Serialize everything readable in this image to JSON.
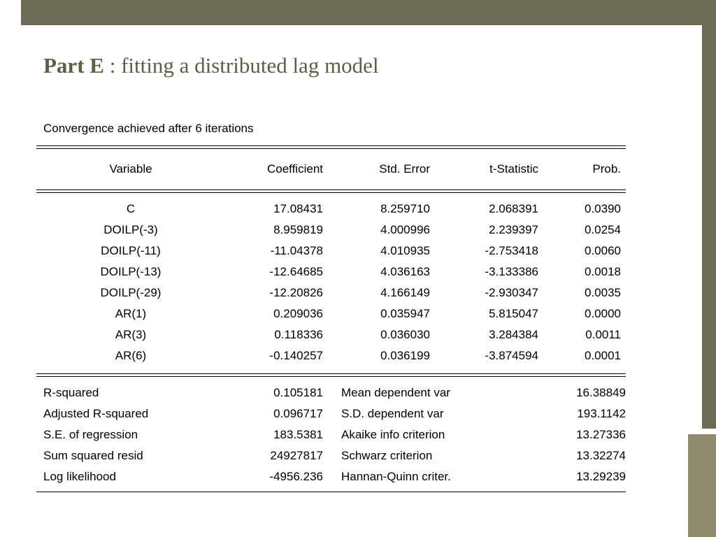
{
  "slide": {
    "title_bold": "Part E",
    "title_rest": " : fitting a distributed lag model"
  },
  "colors": {
    "template_dark_olive": "#6d6b54",
    "template_light_olive": "#8e8b6d",
    "title_text": "#5f5d45",
    "table_text": "#000000",
    "background": "#ffffff"
  },
  "output": {
    "status_line": "Convergence achieved after 6 iterations",
    "columns": [
      "Variable",
      "Coefficient",
      "Std. Error",
      "t-Statistic",
      "Prob."
    ],
    "rows": [
      [
        "C",
        "17.08431",
        "8.259710",
        "2.068391",
        "0.0390"
      ],
      [
        "DOILP(-3)",
        "8.959819",
        "4.000996",
        "2.239397",
        "0.0254"
      ],
      [
        "DOILP(-11)",
        "-11.04378",
        "4.010935",
        "-2.753418",
        "0.0060"
      ],
      [
        "DOILP(-13)",
        "-12.64685",
        "4.036163",
        "-3.133386",
        "0.0018"
      ],
      [
        "DOILP(-29)",
        "-12.20826",
        "4.166149",
        "-2.930347",
        "0.0035"
      ],
      [
        "AR(1)",
        "0.209036",
        "0.035947",
        "5.815047",
        "0.0000"
      ],
      [
        "AR(3)",
        "0.118336",
        "0.036030",
        "3.284384",
        "0.0011"
      ],
      [
        "AR(6)",
        "-0.140257",
        "0.036199",
        "-3.874594",
        "0.0001"
      ]
    ],
    "summary": [
      {
        "left_label": "R-squared",
        "left_value": "0.105181",
        "right_label": "Mean dependent var",
        "right_value": "16.38849"
      },
      {
        "left_label": "Adjusted R-squared",
        "left_value": "0.096717",
        "right_label": "S.D. dependent var",
        "right_value": "193.1142"
      },
      {
        "left_label": "S.E. of regression",
        "left_value": "183.5381",
        "right_label": "Akaike info criterion",
        "right_value": "13.27336"
      },
      {
        "left_label": "Sum squared resid",
        "left_value": "24927817",
        "right_label": "Schwarz criterion",
        "right_value": "13.32274"
      },
      {
        "left_label": "Log likelihood",
        "left_value": "-4956.236",
        "right_label": "Hannan-Quinn criter.",
        "right_value": "13.29239"
      }
    ]
  }
}
